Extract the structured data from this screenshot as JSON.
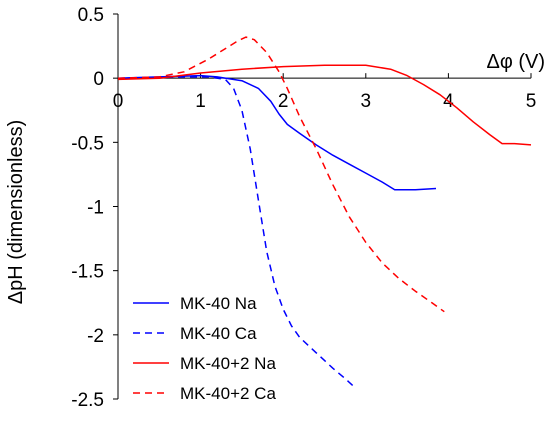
{
  "chart_data": {
    "type": "line",
    "title": "",
    "xlabel": "Δφ (V)",
    "ylabel": "ΔpH (dimensionless)",
    "xlim": [
      0,
      5
    ],
    "ylim": [
      -2.5,
      0.5
    ],
    "x_ticks": [
      "0",
      "1",
      "2",
      "3",
      "4",
      "5"
    ],
    "y_ticks": [
      "0.5",
      "0",
      "-0.5",
      "-1",
      "-1.5",
      "-2",
      "-2.5"
    ],
    "grid": false,
    "legend_position": "bottom-left",
    "series": [
      {
        "name": "MK-40 Na",
        "color": "#0000ff",
        "dash": "solid",
        "points": [
          [
            0,
            0
          ],
          [
            0.5,
            0.01
          ],
          [
            1.0,
            0.02
          ],
          [
            1.2,
            0.01
          ],
          [
            1.5,
            -0.02
          ],
          [
            1.7,
            -0.08
          ],
          [
            1.85,
            -0.18
          ],
          [
            1.95,
            -0.28
          ],
          [
            2.05,
            -0.36
          ],
          [
            2.2,
            -0.43
          ],
          [
            2.4,
            -0.52
          ],
          [
            2.6,
            -0.6
          ],
          [
            2.8,
            -0.67
          ],
          [
            3.0,
            -0.74
          ],
          [
            3.2,
            -0.81
          ],
          [
            3.35,
            -0.87
          ],
          [
            3.6,
            -0.87
          ],
          [
            3.85,
            -0.86
          ]
        ]
      },
      {
        "name": "MK-40 Ca",
        "color": "#0000ff",
        "dash": "dashed",
        "points": [
          [
            0,
            0
          ],
          [
            0.8,
            0.01
          ],
          [
            1.1,
            0.01
          ],
          [
            1.3,
            -0.01
          ],
          [
            1.4,
            -0.08
          ],
          [
            1.5,
            -0.25
          ],
          [
            1.6,
            -0.55
          ],
          [
            1.7,
            -0.95
          ],
          [
            1.8,
            -1.35
          ],
          [
            1.9,
            -1.62
          ],
          [
            2.0,
            -1.8
          ],
          [
            2.1,
            -1.93
          ],
          [
            2.2,
            -2.02
          ],
          [
            2.4,
            -2.14
          ],
          [
            2.6,
            -2.26
          ],
          [
            2.75,
            -2.34
          ],
          [
            2.85,
            -2.4
          ]
        ]
      },
      {
        "name": "MK-40+2 Na",
        "color": "#ff0000",
        "dash": "solid",
        "points": [
          [
            0,
            -0.01
          ],
          [
            0.5,
            0.0
          ],
          [
            1.0,
            0.04
          ],
          [
            1.5,
            0.07
          ],
          [
            2.0,
            0.09
          ],
          [
            2.5,
            0.1
          ],
          [
            3.0,
            0.1
          ],
          [
            3.3,
            0.07
          ],
          [
            3.5,
            0.02
          ],
          [
            3.7,
            -0.05
          ],
          [
            3.9,
            -0.13
          ],
          [
            4.1,
            -0.23
          ],
          [
            4.3,
            -0.34
          ],
          [
            4.5,
            -0.44
          ],
          [
            4.65,
            -0.51
          ],
          [
            4.8,
            -0.51
          ],
          [
            5.0,
            -0.52
          ]
        ]
      },
      {
        "name": "MK-40+2 Ca",
        "color": "#ff0000",
        "dash": "dashed",
        "points": [
          [
            0,
            0
          ],
          [
            0.5,
            0.01
          ],
          [
            0.8,
            0.05
          ],
          [
            1.1,
            0.15
          ],
          [
            1.3,
            0.23
          ],
          [
            1.45,
            0.29
          ],
          [
            1.55,
            0.32
          ],
          [
            1.65,
            0.3
          ],
          [
            1.8,
            0.2
          ],
          [
            1.95,
            0.05
          ],
          [
            2.05,
            -0.08
          ],
          [
            2.2,
            -0.3
          ],
          [
            2.4,
            -0.55
          ],
          [
            2.6,
            -0.83
          ],
          [
            2.8,
            -1.08
          ],
          [
            3.0,
            -1.28
          ],
          [
            3.2,
            -1.44
          ],
          [
            3.4,
            -1.56
          ],
          [
            3.6,
            -1.66
          ],
          [
            3.8,
            -1.75
          ],
          [
            3.95,
            -1.82
          ]
        ]
      }
    ]
  }
}
